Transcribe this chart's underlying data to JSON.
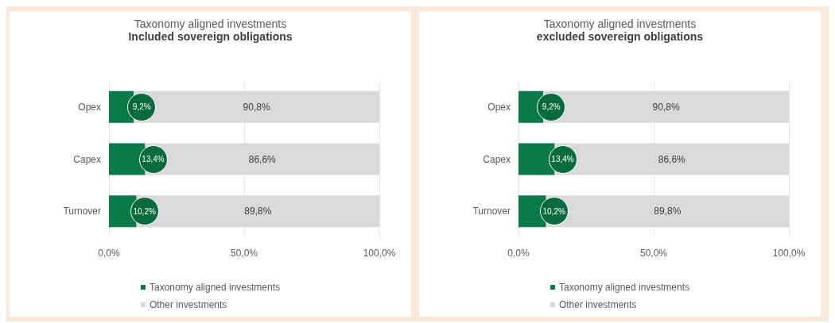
{
  "chart_data": [
    {
      "type": "bar",
      "orientation": "horizontal",
      "stacked": true,
      "title": "Taxonomy aligned investments",
      "subtitle": "Included sovereign obligations",
      "categories": [
        "Opex",
        "Capex",
        "Turnover"
      ],
      "series": [
        {
          "name": "Taxonomy aligned investments",
          "color": "#0b7a4b",
          "values": [
            9.2,
            13.4,
            10.2
          ],
          "value_labels": [
            "9,2%",
            "13,4%",
            "10,2%"
          ]
        },
        {
          "name": "Other investments",
          "color": "#d9d9d9",
          "values": [
            90.8,
            86.6,
            89.8
          ],
          "value_labels": [
            "90,8%",
            "86,6%",
            "89,8%"
          ]
        }
      ],
      "xlim": [
        0,
        100
      ],
      "xticks": [
        {
          "value": 0,
          "label": "0,0%"
        },
        {
          "value": 50,
          "label": "50,0%"
        },
        {
          "value": 100,
          "label": "100,0%"
        }
      ],
      "grid": "x",
      "legend": "bottom"
    },
    {
      "type": "bar",
      "orientation": "horizontal",
      "stacked": true,
      "title": "Taxonomy aligned investments",
      "subtitle": "excluded sovereign obligations",
      "categories": [
        "Opex",
        "Capex",
        "Turnover"
      ],
      "series": [
        {
          "name": "Taxonomy aligned investments",
          "color": "#0b7a4b",
          "values": [
            9.2,
            13.4,
            10.2
          ],
          "value_labels": [
            "9,2%",
            "13,4%",
            "10,2%"
          ]
        },
        {
          "name": "Other investments",
          "color": "#d9d9d9",
          "values": [
            90.8,
            86.6,
            89.8
          ],
          "value_labels": [
            "90,8%",
            "86,6%",
            "89,8%"
          ]
        }
      ],
      "xlim": [
        0,
        100
      ],
      "xticks": [
        {
          "value": 0,
          "label": "0,0%"
        },
        {
          "value": 50,
          "label": "50,0%"
        },
        {
          "value": 100,
          "label": "100,0%"
        }
      ],
      "grid": "x",
      "legend": "bottom"
    }
  ]
}
